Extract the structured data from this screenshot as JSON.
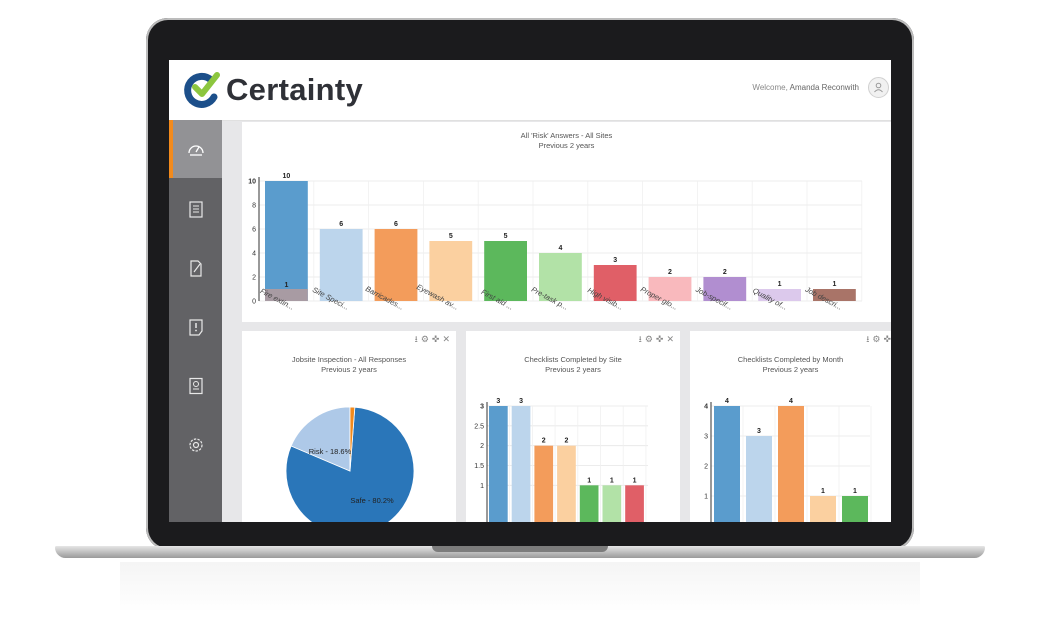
{
  "header": {
    "brand": "Certainty",
    "welcome_prefix": "Welcome, ",
    "user_name": "Amanda Reconwith"
  },
  "sidebar": {
    "items": [
      {
        "icon": "dashboard-gauge-icon",
        "active": true
      },
      {
        "icon": "checklist-clipboard-icon",
        "active": false
      },
      {
        "icon": "edit-document-icon",
        "active": false
      },
      {
        "icon": "issue-alert-icon",
        "active": false
      },
      {
        "icon": "report-icon",
        "active": false
      },
      {
        "icon": "settings-gear-icon",
        "active": false
      }
    ]
  },
  "colors": {
    "sidebar": "#626265",
    "accent": "#f28a1c"
  },
  "panels": {
    "risk": {
      "title": "All 'Risk' Answers - All Sites",
      "subtitle": "Previous 2 years"
    },
    "jobsite": {
      "title": "Jobsite Inspection - All Responses",
      "subtitle": "Previous 2 years"
    },
    "by_site": {
      "title": "Checklists Completed by Site",
      "subtitle": "Previous 2 years"
    },
    "by_month": {
      "title": "Checklists Completed by Month",
      "subtitle": "Previous 2 years"
    }
  },
  "panel_tools": [
    "download-icon",
    "gear-icon",
    "move-icon",
    "close-icon"
  ],
  "chart_data": [
    {
      "type": "bar",
      "title": "All 'Risk' Answers - All Sites",
      "subtitle": "Previous 2 years",
      "categories": [
        "Fire extin...",
        "Site Speci...",
        "Barricades...",
        "Eyewash av...",
        "First aid ...",
        "Pre-task p...",
        "High visib...",
        "Proper glo...",
        "Job-specif...",
        "Quality of...",
        "Job descri..."
      ],
      "values": [
        10,
        6,
        6,
        5,
        5,
        4,
        3,
        2,
        2,
        1,
        1
      ],
      "stacked_base": [
        1,
        0,
        0,
        0,
        0,
        0,
        0,
        0,
        0,
        0,
        0
      ],
      "colors": [
        "#5a9ccd",
        "#bcd5ec",
        "#f39c5b",
        "#fbd0a0",
        "#5cb85c",
        "#b2e2a7",
        "#e05f67",
        "#f9b9bd",
        "#b18ed0",
        "#dcc9ec",
        "#a97468"
      ],
      "ylim": [
        0,
        10
      ],
      "yticks": [
        "0",
        "2",
        "4",
        "6",
        "8",
        "10"
      ],
      "grid": true
    },
    {
      "type": "pie",
      "title": "Jobsite Inspection - All Responses",
      "subtitle": "Previous 2 years",
      "slices": [
        {
          "label": "Safe - 80.2%",
          "value": 80.2,
          "color": "#2a76b9"
        },
        {
          "label": "Risk - 18.6%",
          "value": 18.6,
          "color": "#aec9e8"
        },
        {
          "label": "",
          "value": 1.2,
          "color": "#f28a1c"
        }
      ]
    },
    {
      "type": "bar",
      "title": "Checklists Completed by Site",
      "subtitle": "Previous 2 years",
      "values": [
        3,
        3,
        2,
        2,
        1,
        1,
        1
      ],
      "colors": [
        "#5a9ccd",
        "#bcd5ec",
        "#f39c5b",
        "#fbd0a0",
        "#5cb85c",
        "#b2e2a7",
        "#e05f67"
      ],
      "ylim": [
        0,
        3
      ],
      "yticks": [
        "1",
        "1.5",
        "2",
        "2.5",
        "3"
      ],
      "grid": true
    },
    {
      "type": "bar",
      "title": "Checklists Completed by Month",
      "subtitle": "Previous 2 years",
      "values": [
        4,
        3,
        4,
        1,
        1
      ],
      "colors": [
        "#5a9ccd",
        "#bcd5ec",
        "#f39c5b",
        "#fbd0a0",
        "#5cb85c"
      ],
      "ylim": [
        0,
        4
      ],
      "yticks": [
        "1",
        "2",
        "3",
        "4"
      ],
      "grid": true
    }
  ]
}
